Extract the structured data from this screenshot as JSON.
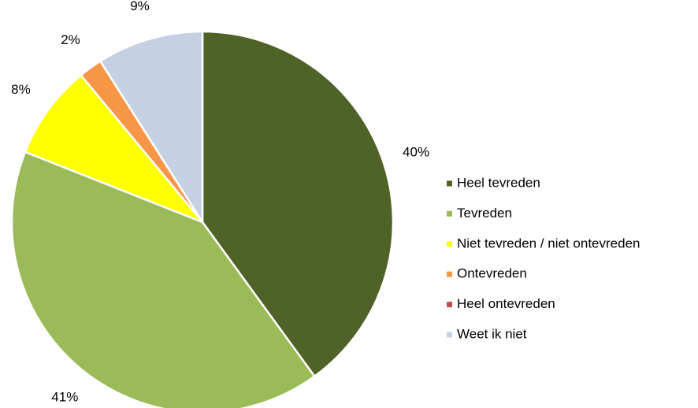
{
  "chart_data": {
    "type": "pie",
    "categories": [
      "Heel tevreden",
      "Tevreden",
      "Niet tevreden / niet ontevreden",
      "Ontevreden",
      "Heel ontevreden",
      "Weet ik niet"
    ],
    "values": [
      40,
      41,
      8,
      2,
      0,
      9
    ],
    "value_labels": [
      "40%",
      "41%",
      "8%",
      "2%",
      null,
      "9%"
    ],
    "colors": [
      "#4f6228",
      "#9bbb59",
      "#ffff00",
      "#f79646",
      "#c0504d",
      "#c5d0e3"
    ],
    "legend": "right"
  }
}
